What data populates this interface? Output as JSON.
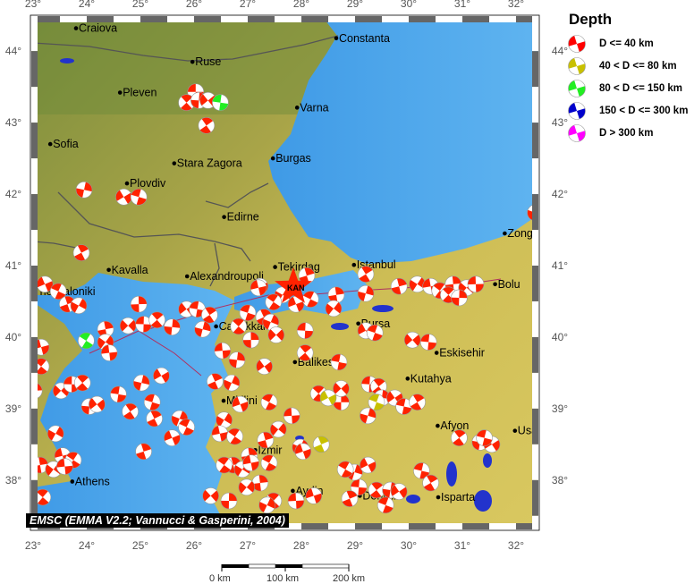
{
  "map": {
    "lon_range": [
      23,
      32.45
    ],
    "lat_range": [
      37.31,
      44.49
    ],
    "lon_ticks": [
      23,
      24,
      25,
      26,
      27,
      28,
      29,
      30,
      31,
      32
    ],
    "lat_ticks": [
      38,
      39,
      40,
      41,
      42,
      43,
      44
    ],
    "colors": {
      "sea": "#4aa3ea",
      "land_low": "#5f8a3a",
      "land_high": "#d8c45a",
      "frame_dark": "#666666",
      "lake": "#2233cc",
      "beachball_red": "#ff2200"
    },
    "cities": [
      {
        "name": "Craiova",
        "lon": 23.8,
        "lat": 44.32
      },
      {
        "name": "Constanta",
        "lon": 28.65,
        "lat": 44.18
      },
      {
        "name": "Ruse",
        "lon": 25.97,
        "lat": 43.85
      },
      {
        "name": "Pleven",
        "lon": 24.62,
        "lat": 43.42
      },
      {
        "name": "Varna",
        "lon": 27.92,
        "lat": 43.21
      },
      {
        "name": "Sofia",
        "lon": 23.32,
        "lat": 42.7
      },
      {
        "name": "Stara Zagora",
        "lon": 25.63,
        "lat": 42.43
      },
      {
        "name": "Burgas",
        "lon": 27.47,
        "lat": 42.5
      },
      {
        "name": "Plovdiv",
        "lon": 24.75,
        "lat": 42.15
      },
      {
        "name": "Edirne",
        "lon": 26.56,
        "lat": 41.68
      },
      {
        "name": "Zongu",
        "lon": 31.79,
        "lat": 41.45
      },
      {
        "name": "Kavalla",
        "lon": 24.41,
        "lat": 40.94
      },
      {
        "name": "Alexandroupoli",
        "lon": 25.87,
        "lat": 40.85
      },
      {
        "name": "Tekirdag",
        "lon": 27.51,
        "lat": 40.98
      },
      {
        "name": "Istanbul",
        "lon": 28.98,
        "lat": 41.01
      },
      {
        "name": "Bolu",
        "lon": 31.61,
        "lat": 40.74
      },
      {
        "name": "Thessaloniki",
        "lon": 22.94,
        "lat": 40.64
      },
      {
        "name": "Canakkale",
        "lon": 26.41,
        "lat": 40.15
      },
      {
        "name": "Bursa",
        "lon": 29.06,
        "lat": 40.19
      },
      {
        "name": "Eskisehir",
        "lon": 30.52,
        "lat": 39.78
      },
      {
        "name": "Balikesir",
        "lon": 27.88,
        "lat": 39.65
      },
      {
        "name": "Kutahya",
        "lon": 29.98,
        "lat": 39.42
      },
      {
        "name": "Mitilini",
        "lon": 26.55,
        "lat": 39.11
      },
      {
        "name": "Afyon",
        "lon": 30.54,
        "lat": 38.76
      },
      {
        "name": "Usa",
        "lon": 31.98,
        "lat": 38.69
      },
      {
        "name": "Izmir",
        "lon": 27.14,
        "lat": 38.42
      },
      {
        "name": "Aydin",
        "lon": 27.84,
        "lat": 37.85
      },
      {
        "name": "Denizli",
        "lon": 29.09,
        "lat": 37.78
      },
      {
        "name": "Isparta",
        "lon": 30.55,
        "lat": 37.76
      },
      {
        "name": "Athens",
        "lon": 23.73,
        "lat": 37.98
      }
    ],
    "station": {
      "label": "KAN",
      "lon": 27.85,
      "lat": 40.7
    },
    "events": [
      [
        26.03,
        43.43,
        0
      ],
      [
        25.86,
        43.28,
        0
      ],
      [
        26.09,
        43.31,
        0
      ],
      [
        26.26,
        43.31,
        0
      ],
      [
        26.49,
        43.28,
        2
      ],
      [
        26.23,
        42.96,
        0
      ],
      [
        23.95,
        42.06,
        0
      ],
      [
        24.69,
        41.96,
        0
      ],
      [
        24.97,
        41.96,
        0
      ],
      [
        23.9,
        41.18,
        0
      ],
      [
        32.36,
        41.74,
        0
      ],
      [
        23.22,
        40.74,
        0
      ],
      [
        23.47,
        40.64,
        0
      ],
      [
        23.64,
        40.46,
        0
      ],
      [
        23.85,
        40.44,
        0
      ],
      [
        23.15,
        39.86,
        0
      ],
      [
        23.99,
        39.95,
        2
      ],
      [
        24.35,
        40.11,
        0
      ],
      [
        24.35,
        39.93,
        0
      ],
      [
        24.42,
        39.78,
        0
      ],
      [
        23.15,
        39.59,
        0
      ],
      [
        23.02,
        39.25,
        0
      ],
      [
        23.52,
        39.25,
        0
      ],
      [
        23.72,
        39.34,
        0
      ],
      [
        23.92,
        39.36,
        0
      ],
      [
        24.05,
        39.03,
        0
      ],
      [
        24.19,
        39.06,
        0
      ],
      [
        24.59,
        39.2,
        0
      ],
      [
        24.81,
        38.96,
        0
      ],
      [
        25.02,
        39.36,
        0
      ],
      [
        25.39,
        39.46,
        0
      ],
      [
        25.22,
        39.09,
        0
      ],
      [
        25.26,
        38.86,
        0
      ],
      [
        25.73,
        38.86,
        0
      ],
      [
        25.59,
        38.59,
        0
      ],
      [
        25.86,
        38.74,
        0
      ],
      [
        25.06,
        38.4,
        0
      ],
      [
        23.42,
        38.65,
        0
      ],
      [
        23.55,
        38.34,
        0
      ],
      [
        23.75,
        38.28,
        0
      ],
      [
        23.13,
        38.21,
        0
      ],
      [
        23.38,
        38.15,
        0
      ],
      [
        23.59,
        38.19,
        0
      ],
      [
        23.18,
        37.76,
        0
      ],
      [
        24.97,
        40.46,
        0
      ],
      [
        24.77,
        40.16,
        0
      ],
      [
        25.06,
        40.18,
        0
      ],
      [
        25.31,
        40.24,
        0
      ],
      [
        25.59,
        40.14,
        0
      ],
      [
        25.86,
        40.39,
        0
      ],
      [
        26.06,
        40.39,
        0
      ],
      [
        26.29,
        40.31,
        0
      ],
      [
        26.16,
        40.11,
        0
      ],
      [
        27.23,
        40.71,
        0
      ],
      [
        27.0,
        40.34,
        0
      ],
      [
        27.3,
        40.28,
        0
      ],
      [
        27.43,
        40.21,
        0
      ],
      [
        27.9,
        40.46,
        0
      ],
      [
        28.17,
        40.53,
        0
      ],
      [
        28.1,
        40.86,
        0
      ],
      [
        27.65,
        40.59,
        0
      ],
      [
        27.2,
        40.69,
        0
      ],
      [
        27.48,
        40.49,
        0
      ],
      [
        28.65,
        40.59,
        0
      ],
      [
        28.6,
        40.4,
        0
      ],
      [
        26.53,
        39.81,
        0
      ],
      [
        26.83,
        40.15,
        0
      ],
      [
        27.06,
        39.96,
        0
      ],
      [
        27.53,
        40.03,
        0
      ],
      [
        28.07,
        40.09,
        0
      ],
      [
        28.07,
        39.78,
        0
      ],
      [
        26.8,
        39.68,
        0
      ],
      [
        27.31,
        39.59,
        0
      ],
      [
        28.7,
        39.65,
        0
      ],
      [
        29.2,
        40.88,
        0
      ],
      [
        29.2,
        40.61,
        0
      ],
      [
        29.2,
        40.09,
        0
      ],
      [
        29.37,
        40.06,
        0
      ],
      [
        26.39,
        39.38,
        0
      ],
      [
        26.7,
        39.36,
        0
      ],
      [
        26.86,
        39.06,
        0
      ],
      [
        27.4,
        39.09,
        0
      ],
      [
        27.33,
        38.56,
        0
      ],
      [
        26.56,
        38.84,
        0
      ],
      [
        26.48,
        38.65,
        0
      ],
      [
        26.76,
        38.61,
        0
      ],
      [
        27.03,
        38.34,
        0
      ],
      [
        27.57,
        38.71,
        0
      ],
      [
        27.82,
        38.9,
        0
      ],
      [
        28.32,
        39.21,
        0
      ],
      [
        28.74,
        39.09,
        0
      ],
      [
        28.74,
        39.28,
        0
      ],
      [
        29.27,
        39.34,
        0
      ],
      [
        29.44,
        39.31,
        0
      ],
      [
        29.5,
        39.15,
        0
      ],
      [
        29.74,
        39.15,
        0
      ],
      [
        29.91,
        39.03,
        0
      ],
      [
        30.16,
        39.09,
        0
      ],
      [
        29.24,
        38.9,
        0
      ],
      [
        28.5,
        39.15,
        1
      ],
      [
        29.4,
        39.09,
        1
      ],
      [
        28.37,
        38.5,
        1
      ],
      [
        27.98,
        38.46,
        0
      ],
      [
        28.03,
        38.4,
        0
      ],
      [
        27.4,
        38.24,
        0
      ],
      [
        26.73,
        38.21,
        0
      ],
      [
        26.9,
        38.15,
        0
      ],
      [
        27.06,
        38.24,
        0
      ],
      [
        26.56,
        38.21,
        0
      ],
      [
        27.23,
        37.96,
        0
      ],
      [
        26.98,
        37.9,
        0
      ],
      [
        27.9,
        37.71,
        0
      ],
      [
        27.48,
        37.71,
        0
      ],
      [
        26.65,
        37.71,
        0
      ],
      [
        26.31,
        37.78,
        0
      ],
      [
        29.07,
        37.9,
        0
      ],
      [
        29.4,
        37.86,
        0
      ],
      [
        29.66,
        37.86,
        0
      ],
      [
        29.82,
        37.84,
        0
      ],
      [
        30.24,
        38.13,
        0
      ],
      [
        30.41,
        37.96,
        0
      ],
      [
        28.99,
        38.11,
        0
      ],
      [
        29.24,
        38.21,
        0
      ],
      [
        29.57,
        37.65,
        0
      ],
      [
        28.9,
        37.74,
        0
      ],
      [
        27.36,
        37.65,
        0
      ],
      [
        28.23,
        37.78,
        0
      ],
      [
        28.82,
        38.15,
        0
      ],
      [
        29.82,
        40.71,
        0
      ],
      [
        30.16,
        40.74,
        0
      ],
      [
        30.41,
        40.71,
        0
      ],
      [
        30.58,
        40.65,
        0
      ],
      [
        30.83,
        40.74,
        0
      ],
      [
        31.08,
        40.69,
        0
      ],
      [
        31.25,
        40.74,
        0
      ],
      [
        30.74,
        40.59,
        0
      ],
      [
        30.94,
        40.55,
        0
      ],
      [
        30.07,
        39.96,
        0
      ],
      [
        30.37,
        39.93,
        0
      ],
      [
        30.94,
        38.59,
        0
      ],
      [
        31.33,
        38.53,
        0
      ],
      [
        31.55,
        38.5,
        0
      ],
      [
        31.41,
        38.59,
        0
      ]
    ]
  },
  "legend": {
    "title": "Depth",
    "items": [
      {
        "label": "D <= 40 km",
        "color": "#ff0000"
      },
      {
        "label": "40 < D <= 80 km",
        "color": "#c8c000"
      },
      {
        "label": "80 < D <= 150 km",
        "color": "#22ee22"
      },
      {
        "label": "150 < D <= 300 km",
        "color": "#0000cc"
      },
      {
        "label": "D > 300 km",
        "color": "#ff00ff"
      }
    ]
  },
  "caption": "EMSC (EMMA V2.2; Vannucci & Gasperini, 2004)",
  "scale_bar": {
    "labels": [
      "0 km",
      "100 km",
      "200 km"
    ]
  }
}
